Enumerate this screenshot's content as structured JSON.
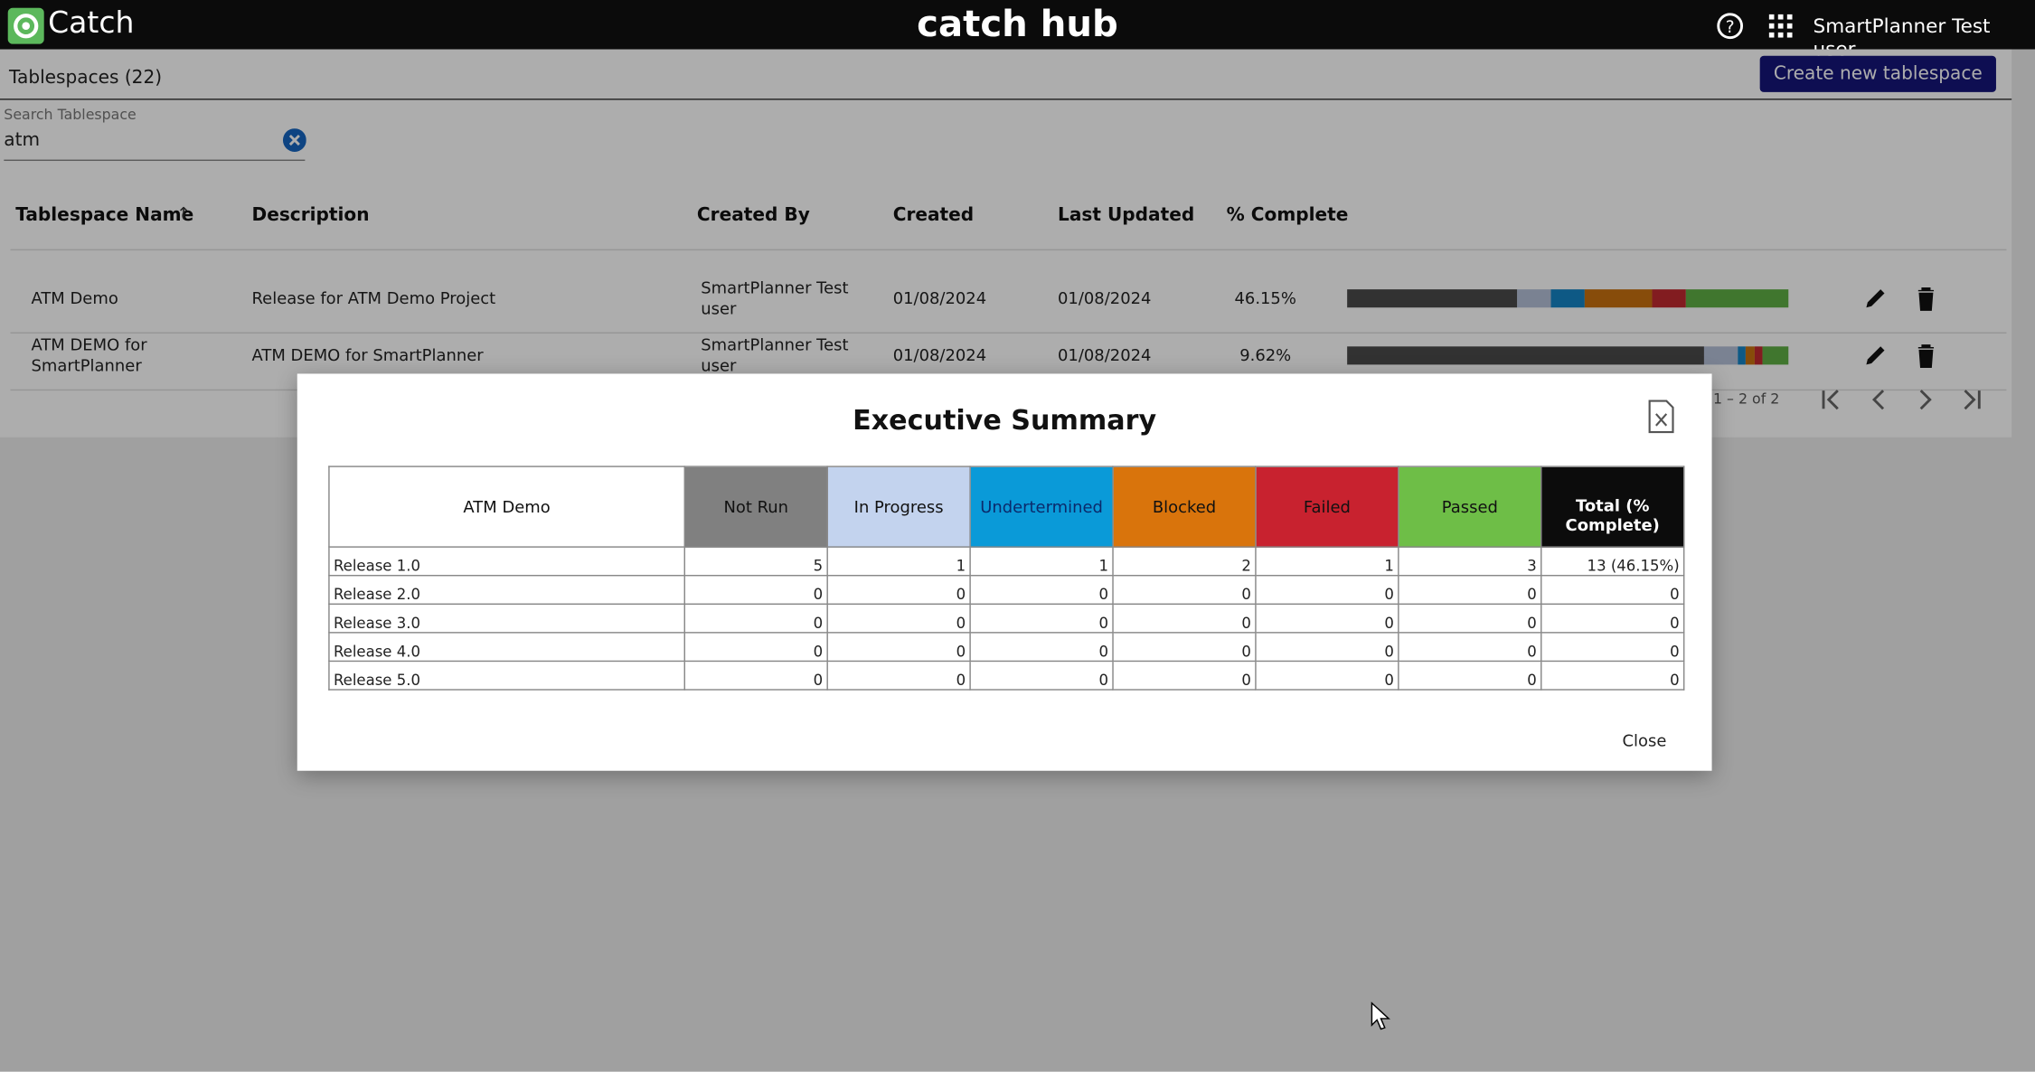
{
  "header": {
    "brand": "Catch",
    "title": "catch hub",
    "user": "SmartPlanner Test user"
  },
  "page": {
    "heading": "Tablespaces (22)",
    "create_button": "Create new tablespace",
    "search_label": "Search Tablespace",
    "search_value": "atm"
  },
  "table": {
    "columns": [
      "Tablespace Name",
      "Description",
      "Created By",
      "Created",
      "Last Updated",
      "% Complete"
    ],
    "progress_colors": [
      "#4a4a4a",
      "#b4c0d8",
      "#1683c4",
      "#c8700f",
      "#c02a30",
      "#5fae45"
    ],
    "rows": [
      {
        "name": "ATM Demo",
        "description": "Release for ATM Demo Project",
        "created_by": "SmartPlanner Test user",
        "created": "01/08/2024",
        "last_updated": "01/08/2024",
        "complete": "46.15%",
        "progress": [
          5,
          1,
          1,
          2,
          1,
          3
        ]
      },
      {
        "name": "ATM DEMO for SmartPlanner",
        "description": "ATM DEMO for SmartPlanner",
        "created_by": "SmartPlanner Test user",
        "created": "01/08/2024",
        "last_updated": "01/08/2024",
        "complete": "9.62%",
        "progress": [
          42,
          4,
          1,
          1,
          1,
          3
        ]
      }
    ],
    "paginator": "1 – 2 of 2"
  },
  "modal": {
    "title": "Executive Summary",
    "project": "ATM Demo",
    "statuses": [
      {
        "name": "Not Run",
        "color": "#808080"
      },
      {
        "name": "In Progress",
        "color": "#c3d3ee"
      },
      {
        "name": "Undertermined",
        "color": "#0a9ad8"
      },
      {
        "name": "Blocked",
        "color": "#d9740c"
      },
      {
        "name": "Failed",
        "color": "#c8222f"
      },
      {
        "name": "Passed",
        "color": "#6ebe47"
      }
    ],
    "total_label": "Total (% Complete)",
    "rows": [
      {
        "release": "Release 1.0",
        "counts": [
          5,
          1,
          1,
          2,
          1,
          3
        ],
        "total": "13 (46.15%)"
      },
      {
        "release": "Release 2.0",
        "counts": [
          0,
          0,
          0,
          0,
          0,
          0
        ],
        "total": 0
      },
      {
        "release": "Release 3.0",
        "counts": [
          0,
          0,
          0,
          0,
          0,
          0
        ],
        "total": 0
      },
      {
        "release": "Release 4.0",
        "counts": [
          0,
          0,
          0,
          0,
          0,
          0
        ],
        "total": 0
      },
      {
        "release": "Release 5.0",
        "counts": [
          0,
          0,
          0,
          0,
          0,
          0
        ],
        "total": 0
      }
    ],
    "close": "Close"
  }
}
